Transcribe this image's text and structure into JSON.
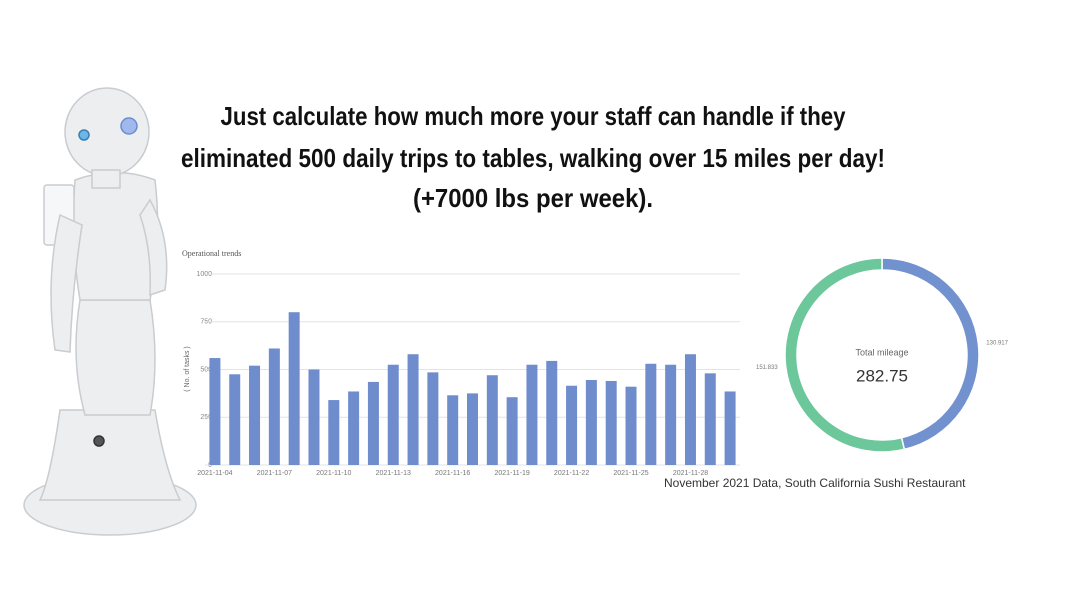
{
  "headline": [
    "Just calculate how much more your staff can handle if they",
    "eliminated 500 daily trips to tables, walking over 15 miles per day!",
    "(+7000 lbs per week)."
  ],
  "caption": "November 2021 Data, South California Sushi Restaurant",
  "chart_data": [
    {
      "type": "bar",
      "title": "Operational trends",
      "y_label": "( No. of tasks )",
      "color": "#6f8dcd",
      "categories": [
        "2021-11-04",
        null,
        null,
        "2021-11-07",
        null,
        null,
        "2021-11-10",
        null,
        null,
        "2021-11-13",
        null,
        null,
        "2021-11-16",
        null,
        null,
        "2021-11-19",
        null,
        null,
        "2021-11-22",
        null,
        null,
        "2021-11-25",
        null,
        null,
        "2021-11-28",
        null,
        null
      ],
      "values": [
        560,
        475,
        520,
        610,
        800,
        500,
        340,
        385,
        435,
        525,
        580,
        485,
        365,
        375,
        470,
        355,
        525,
        545,
        415,
        445,
        440,
        410,
        530,
        525,
        580,
        480,
        385
      ],
      "ylim": [
        0,
        1000
      ],
      "yticks": [
        0,
        250,
        500,
        750,
        1000
      ],
      "grid": true
    },
    {
      "type": "pie",
      "center_label": "Total mileage",
      "total": 282.75,
      "values": [
        130.917,
        151.833
      ],
      "colors": [
        "#7291cf",
        "#6cc79b"
      ]
    }
  ]
}
